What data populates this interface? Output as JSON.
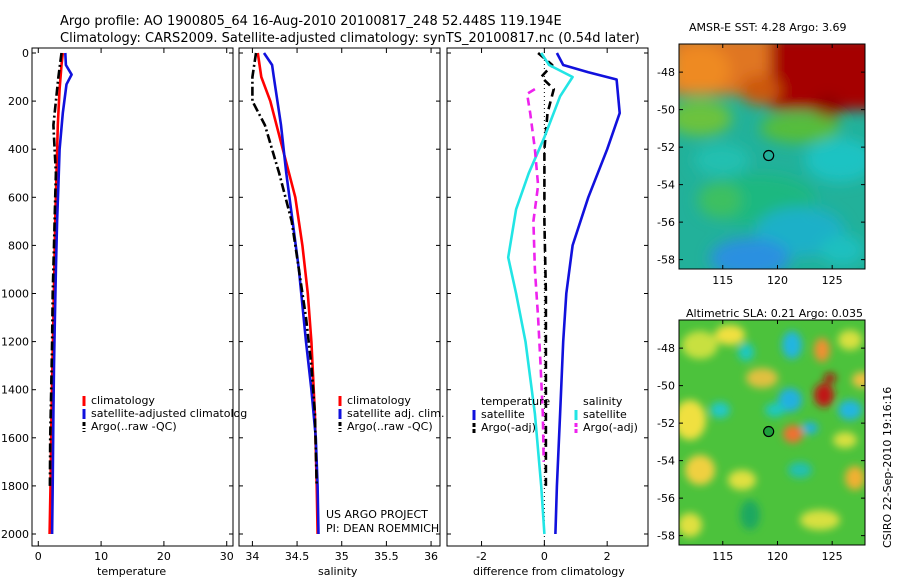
{
  "title": {
    "line1": "Argo profile: AO 1900805_64 16-Aug-2010 20100817_248 52.448S 119.194E",
    "line2": "Climatology: CARS2009. Satellite-adjusted climatology: synTS_20100817.nc (0.54d later)"
  },
  "colors": {
    "red": "#ff0000",
    "blue": "#1111dd",
    "black": "#000000",
    "cyan": "#22e5e5",
    "magenta": "#ee22ee"
  },
  "credits": {
    "project": "US ARGO PROJECT",
    "pi": "PI: DEAN ROEMMICH",
    "stamp": "CSIRO 22-Sep-2010 19:16:16"
  },
  "chart_data": [
    {
      "type": "line",
      "xlabel": "temperature",
      "ylabel": "",
      "xlim": [
        -1,
        31
      ],
      "ylim": [
        2050,
        0
      ],
      "xticks": [
        "0",
        "10",
        "20",
        "30"
      ],
      "yticks": [
        "0",
        "200",
        "400",
        "600",
        "800",
        "1000",
        "1200",
        "1400",
        "1600",
        "1800",
        "2000"
      ],
      "legend": [
        "climatology",
        "satellite-adjusted climatolog",
        "Argo(..raw -QC)"
      ],
      "series": [
        {
          "name": "climatology",
          "style": "solid",
          "color": "red",
          "x": [
            3.9,
            3.7,
            3.4,
            3.1,
            2.9,
            2.7,
            2.55,
            2.4,
            2.25,
            2.1,
            1.95,
            1.8
          ],
          "y": [
            0,
            50,
            150,
            300,
            500,
            700,
            900,
            1100,
            1300,
            1500,
            1800,
            2000
          ]
        },
        {
          "name": "satellite-adjusted climatolog",
          "style": "solid",
          "color": "blue",
          "x": [
            4.3,
            4.4,
            5.3,
            4.5,
            3.9,
            3.4,
            3.2,
            3.0,
            2.8,
            2.65,
            2.5,
            2.4,
            2.3,
            2.2
          ],
          "y": [
            0,
            50,
            90,
            130,
            250,
            400,
            550,
            700,
            900,
            1100,
            1300,
            1500,
            1800,
            2000
          ]
        },
        {
          "name": "Argo(..raw -QC)",
          "style": "dashdot",
          "color": "black",
          "x": [
            3.7,
            3.2,
            2.8,
            2.4,
            2.6,
            2.8,
            2.7,
            2.5,
            2.3,
            2.2,
            2.05,
            1.9,
            1.85
          ],
          "y": [
            0,
            100,
            200,
            300,
            400,
            500,
            600,
            800,
            1000,
            1200,
            1400,
            1600,
            1800
          ]
        }
      ]
    },
    {
      "type": "line",
      "xlabel": "salinity",
      "ylabel": "",
      "xlim": [
        33.85,
        36.1
      ],
      "ylim": [
        2050,
        0
      ],
      "xticks": [
        "34",
        "34.5",
        "35",
        "35.5",
        "36"
      ],
      "yticks": [],
      "legend": [
        "climatology",
        "satellite adj. clim.",
        "Argo(..raw -QC)"
      ],
      "series": [
        {
          "name": "climatology",
          "style": "solid",
          "color": "red",
          "x": [
            34.06,
            34.1,
            34.2,
            34.34,
            34.48,
            34.56,
            34.62,
            34.66,
            34.7,
            34.72,
            34.73
          ],
          "y": [
            0,
            100,
            200,
            400,
            600,
            800,
            1000,
            1200,
            1500,
            1800,
            2000
          ]
        },
        {
          "name": "satellite adj. clim.",
          "style": "solid",
          "color": "blue",
          "x": [
            34.13,
            34.22,
            34.24,
            34.26,
            34.32,
            34.38,
            34.45,
            34.52,
            34.6,
            34.66,
            34.71,
            34.73,
            34.74
          ],
          "y": [
            0,
            50,
            100,
            150,
            300,
            500,
            700,
            900,
            1200,
            1400,
            1600,
            1800,
            2000
          ]
        },
        {
          "name": "Argo(..raw -QC)",
          "style": "dashdot",
          "color": "black",
          "x": [
            34.04,
            34.0,
            34.0,
            34.14,
            34.3,
            34.44,
            34.52,
            34.6,
            34.66,
            34.7,
            34.72
          ],
          "y": [
            0,
            100,
            200,
            300,
            500,
            700,
            900,
            1100,
            1300,
            1500,
            1800
          ]
        }
      ]
    },
    {
      "type": "line",
      "xlabel": "difference from climatology",
      "ylabel": "",
      "xlim": [
        -3.1,
        3.3
      ],
      "ylim": [
        2050,
        0
      ],
      "xticks": [
        "-2",
        "0",
        "2"
      ],
      "yticks": [],
      "legend_temperature": {
        "title": "temperature",
        "items": [
          "satellite",
          "Argo(-adj)"
        ]
      },
      "legend_salinity": {
        "title": "salinity",
        "items": [
          "satellite",
          "Argo(-adj)"
        ]
      },
      "zero_line": 0,
      "series": [
        {
          "name": "satellite",
          "group": "temperature",
          "style": "solid",
          "color": "blue",
          "x": [
            0.4,
            0.6,
            1.4,
            2.3,
            2.4,
            2.0,
            1.4,
            0.9,
            0.7,
            0.6,
            0.5,
            0.4,
            0.35
          ],
          "y": [
            0,
            50,
            80,
            110,
            250,
            400,
            600,
            800,
            1000,
            1200,
            1500,
            1800,
            2000
          ]
        },
        {
          "name": "Argo(-adj)",
          "group": "temperature",
          "style": "dashed",
          "color": "black",
          "x": [
            -0.2,
            0.25,
            -0.1,
            0.3,
            0.1,
            0.0,
            0.0,
            0.05,
            0.05,
            0.05,
            0.05
          ],
          "y": [
            0,
            50,
            100,
            150,
            250,
            400,
            700,
            1000,
            1300,
            1600,
            1800
          ]
        },
        {
          "name": "satellite",
          "group": "salinity",
          "style": "solid",
          "color": "cyan",
          "x": [
            -0.1,
            0.15,
            0.9,
            0.5,
            0.0,
            -0.5,
            -0.9,
            -1.15,
            -0.9,
            -0.6,
            -0.3,
            -0.1,
            0.0
          ],
          "y": [
            0,
            50,
            100,
            180,
            350,
            500,
            650,
            850,
            1000,
            1200,
            1500,
            1800,
            2000
          ]
        },
        {
          "name": "Argo(-adj)",
          "group": "salinity",
          "style": "dashed",
          "color": "magenta",
          "x": [
            -0.3,
            -0.55,
            -0.45,
            -0.3,
            -0.2,
            -0.35,
            -0.3,
            -0.2,
            -0.12,
            -0.05,
            -0.02
          ],
          "y": [
            150,
            170,
            250,
            400,
            550,
            700,
            900,
            1100,
            1300,
            1500,
            1700
          ]
        }
      ]
    },
    {
      "type": "heatmap",
      "title": "AMSR-E SST: 4.28 Argo: 3.69",
      "xlim": [
        111,
        128
      ],
      "ylim": [
        -58.5,
        -46.5
      ],
      "xticks": [
        "115",
        "120",
        "125"
      ],
      "yticks": [
        "-48",
        "-50",
        "-52",
        "-54",
        "-56",
        "-58"
      ],
      "marker": {
        "lon": 119.194,
        "lat": -52.448
      }
    },
    {
      "type": "heatmap",
      "title": "Altimetric SLA: 0.21 Argo: 0.035",
      "xlim": [
        111,
        128
      ],
      "ylim": [
        -58.5,
        -46.5
      ],
      "xticks": [
        "115",
        "120",
        "125"
      ],
      "yticks": [
        "-48",
        "-50",
        "-52",
        "-54",
        "-56",
        "-58"
      ],
      "marker": {
        "lon": 119.194,
        "lat": -52.448
      }
    }
  ]
}
